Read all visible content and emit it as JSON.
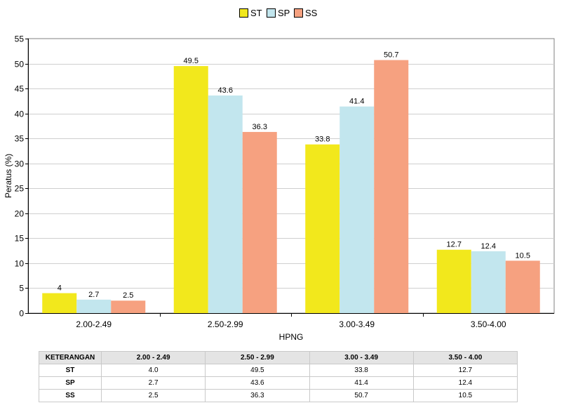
{
  "chart_data": {
    "type": "bar",
    "categories": [
      "2.00-2.49",
      "2.50-2.99",
      "3.00-3.49",
      "3.50-4.00"
    ],
    "series": [
      {
        "name": "ST",
        "values": [
          4,
          49.5,
          33.8,
          12.7
        ],
        "labels": [
          "4",
          "49.5",
          "33.8",
          "12.7"
        ],
        "color": "#f2e81c"
      },
      {
        "name": "SP",
        "values": [
          2.7,
          43.6,
          41.4,
          12.4
        ],
        "labels": [
          "2.7",
          "43.6",
          "41.4",
          "12.4"
        ],
        "color": "#c2e6ee"
      },
      {
        "name": "SS",
        "values": [
          2.5,
          36.3,
          50.7,
          10.5
        ],
        "labels": [
          "2.5",
          "36.3",
          "50.7",
          "10.5"
        ],
        "color": "#f6a180"
      }
    ],
    "xlabel": "HPNG",
    "ylabel": "Peratus (%)",
    "ylim": [
      0,
      55
    ],
    "yticks": [
      "0",
      "5",
      "10",
      "15",
      "20",
      "25",
      "30",
      "35",
      "40",
      "45",
      "50",
      "55"
    ],
    "grid": true,
    "legend_position": "top-center"
  },
  "table": {
    "headers": [
      "KETERANGAN",
      "2.00 - 2.49",
      "2.50 - 2.99",
      "3.00 - 3.49",
      "3.50 - 4.00"
    ],
    "rows": [
      [
        "ST",
        "4.0",
        "49.5",
        "33.8",
        "12.7"
      ],
      [
        "SP",
        "2.7",
        "43.6",
        "41.4",
        "12.4"
      ],
      [
        "SS",
        "2.5",
        "36.3",
        "50.7",
        "10.5"
      ]
    ]
  },
  "colors": {
    "gridline": "#cfcfcf",
    "axis": "#000000"
  }
}
